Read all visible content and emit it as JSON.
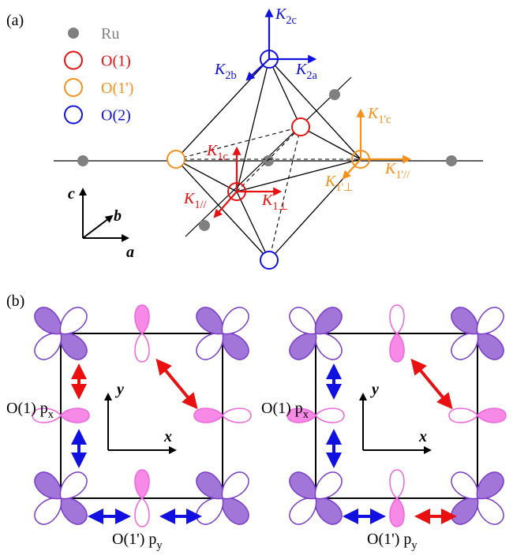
{
  "panel_a": {
    "label": "(a)",
    "legend": [
      {
        "label": "Ru"
      },
      {
        "label": "O(1)"
      },
      {
        "label": "O(1')"
      },
      {
        "label": "O(2)"
      }
    ],
    "axes": {
      "c": "c",
      "b": "b",
      "a": "a"
    },
    "vectors": {
      "k2c": {
        "main": "K",
        "sub": "2c"
      },
      "k2b": {
        "main": "K",
        "sub": "2b"
      },
      "k2a": {
        "main": "K",
        "sub": "2a"
      },
      "k1pc": {
        "main": "K",
        "sub": "1'c"
      },
      "k1ppar": {
        "main": "K",
        "sub": "1'//"
      },
      "k1pperp": {
        "main": "K",
        "sub": "1'⊥"
      },
      "k1c": {
        "main": "K",
        "sub": "1c"
      },
      "k1par": {
        "main": "K",
        "sub": "1//"
      },
      "k1perp": {
        "main": "K",
        "sub": "1⊥"
      }
    }
  },
  "panel_b": {
    "label": "(b)",
    "panels": [
      {
        "px_label": {
          "main": "O(1) p",
          "sub": "x"
        },
        "py_label": {
          "main": "O(1') p",
          "sub": "y"
        },
        "x": "x",
        "y": "y"
      },
      {
        "px_label": {
          "main": "O(1) p",
          "sub": "x"
        },
        "py_label": {
          "main": "O(1') p",
          "sub": "y"
        },
        "x": "x",
        "y": "y"
      }
    ]
  }
}
